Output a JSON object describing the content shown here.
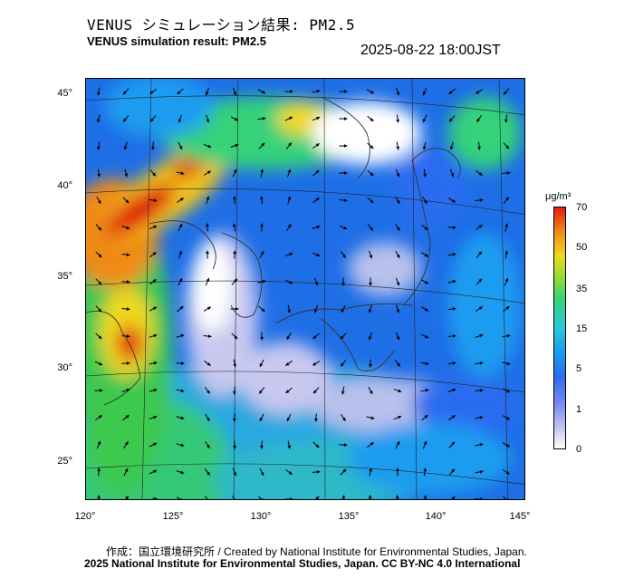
{
  "title_jp": "VENUS シミュレーション結果: PM2.5",
  "title_en": "VENUS simulation result: PM2.5",
  "timestamp": "2025-08-22 18:00JST",
  "lat_labels": [
    "45°",
    "40°",
    "35°",
    "30°",
    "25°"
  ],
  "lon_labels": [
    "120°",
    "125°",
    "130°",
    "135°",
    "140°",
    "145°"
  ],
  "colorbar": {
    "unit": "μg/m³",
    "ticks": [
      "70",
      "50",
      "35",
      "15",
      "5",
      "1",
      "0"
    ],
    "colors": [
      "#e01e10",
      "#f08a14",
      "#f0d81e",
      "#36d27a",
      "#1a9cf0",
      "#7a8cf0",
      "#ffffff"
    ]
  },
  "footer": {
    "credit": "作成：国立環境研究所 / Created by National Institute for Environmental Studies, Japan.",
    "license": "2025 National Institute for Environmental Studies, Japan. CC BY-NC 4.0 International"
  }
}
